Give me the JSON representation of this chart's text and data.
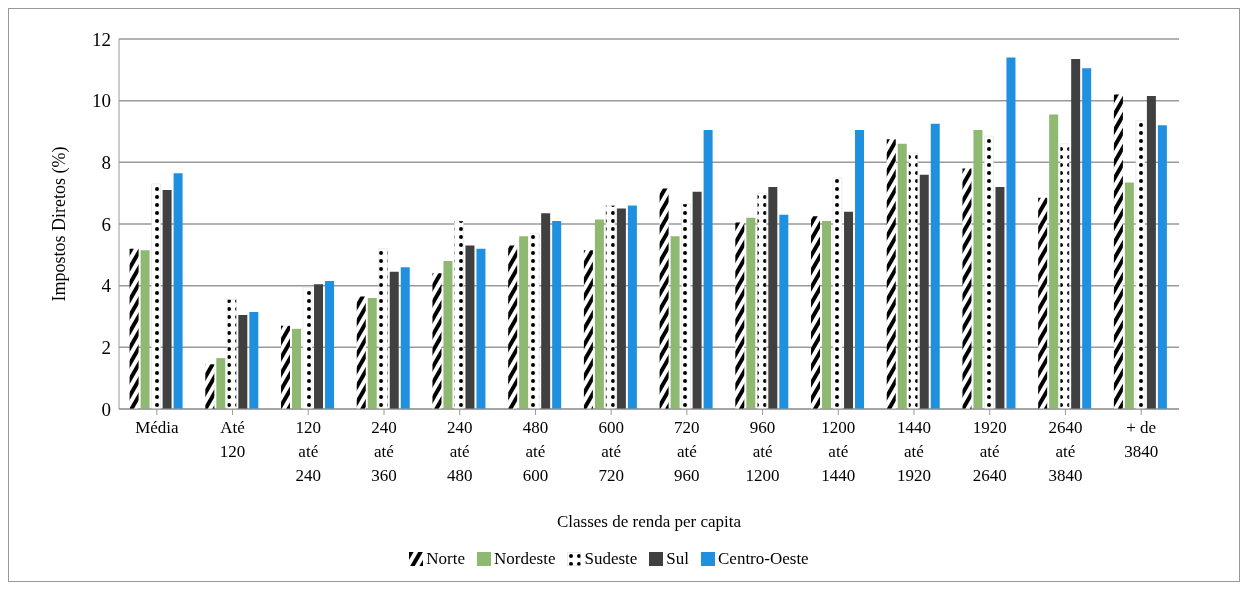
{
  "chart_data": {
    "type": "bar",
    "xlabel": "Classes de renda per capita",
    "ylabel": "Impostos Diretos (%)",
    "categories": [
      "Média",
      "Até 120",
      "120 até 240",
      "240 até 360",
      "240 até 480",
      "480 até 600",
      "600 até 720",
      "720 até 960",
      "960 até 1200",
      "1200 até 1440",
      "1440 até 1920",
      "1920 até 2640",
      "2640 até 3840",
      "+ de 3840"
    ],
    "series": [
      {
        "name": "Norte",
        "color": "#000000",
        "values": [
          5.2,
          1.45,
          2.7,
          3.65,
          4.4,
          5.3,
          5.15,
          7.15,
          6.05,
          6.25,
          8.75,
          7.8,
          6.85,
          10.2
        ]
      },
      {
        "name": "Nordeste",
        "color": "#8fb870",
        "values": [
          5.15,
          1.65,
          2.6,
          3.6,
          4.8,
          5.6,
          6.15,
          5.6,
          6.2,
          6.1,
          8.6,
          9.05,
          9.55,
          7.35
        ]
      },
      {
        "name": "Sudeste",
        "color": "#d9d9d9",
        "values": [
          7.3,
          3.55,
          3.95,
          5.2,
          6.1,
          5.7,
          6.6,
          6.65,
          7.0,
          7.5,
          8.3,
          8.85,
          8.6,
          9.35
        ]
      },
      {
        "name": "Sul",
        "color": "#404040",
        "values": [
          7.1,
          3.05,
          4.05,
          4.45,
          5.3,
          6.35,
          6.5,
          7.05,
          7.2,
          6.4,
          7.6,
          7.2,
          11.35,
          10.15
        ]
      },
      {
        "name": "Centro-Oeste",
        "color": "#1f8fe0",
        "values": [
          7.65,
          3.15,
          4.15,
          4.6,
          5.2,
          6.1,
          6.6,
          9.05,
          6.3,
          9.05,
          9.25,
          11.4,
          11.05,
          9.2
        ]
      }
    ],
    "ylim": [
      0,
      12
    ],
    "yticks": [
      0,
      2,
      4,
      6,
      8,
      10,
      12
    ],
    "grid": "y",
    "legend": "bottom"
  }
}
